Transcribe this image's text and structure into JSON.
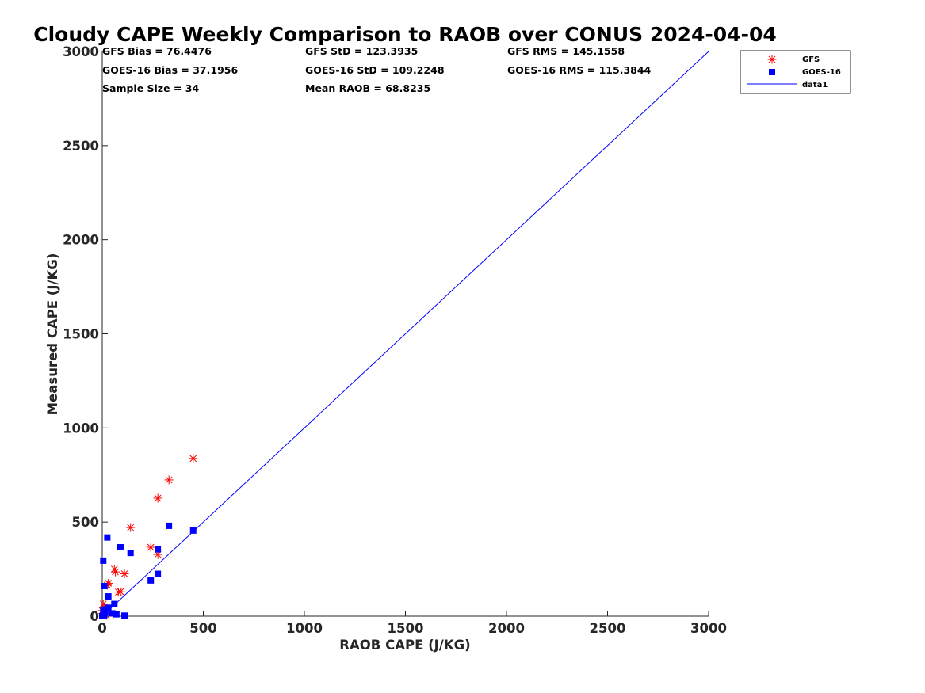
{
  "chart_data": {
    "type": "scatter",
    "title": "Cloudy CAPE Weekly Comparison to RAOB over CONUS 2024-04-04",
    "xlabel": "RAOB CAPE (J/KG)",
    "ylabel": "Measured CAPE (J/KG)",
    "xlim": [
      0,
      3000
    ],
    "ylim": [
      0,
      3000
    ],
    "xticks": [
      "0",
      "500",
      "1000",
      "1500",
      "2000",
      "2500",
      "3000"
    ],
    "yticks": [
      "0",
      "500",
      "1000",
      "1500",
      "2000",
      "2500",
      "3000"
    ],
    "grid": false,
    "legend_position": "top-right",
    "stats": [
      "GFS Bias = 76.4476",
      "GFS StD = 123.3935",
      "GFS RMS = 145.1558",
      "GOES-16 Bias = 37.1956",
      "GOES-16 StD = 109.2248",
      "GOES-16 RMS = 115.3844",
      "Sample Size = 34",
      "Mean RAOB = 68.8235"
    ],
    "series": [
      {
        "name": "GFS",
        "marker": "asterisk",
        "color": "#ff0000",
        "points": [
          [
            450,
            838
          ],
          [
            330,
            724
          ],
          [
            275,
            627
          ],
          [
            140,
            471
          ],
          [
            240,
            366
          ],
          [
            275,
            328
          ],
          [
            60,
            250
          ],
          [
            65,
            235
          ],
          [
            110,
            225
          ],
          [
            30,
            175
          ],
          [
            25,
            165
          ],
          [
            90,
            130
          ],
          [
            80,
            128
          ],
          [
            5,
            65
          ],
          [
            10,
            50
          ],
          [
            0,
            30
          ],
          [
            3,
            15
          ],
          [
            20,
            5
          ]
        ]
      },
      {
        "name": "GOES-16",
        "marker": "square",
        "color": "#0000ff",
        "points": [
          [
            450,
            455
          ],
          [
            330,
            480
          ],
          [
            25,
            418
          ],
          [
            90,
            366
          ],
          [
            275,
            355
          ],
          [
            140,
            336
          ],
          [
            5,
            295
          ],
          [
            275,
            225
          ],
          [
            240,
            190
          ],
          [
            10,
            160
          ],
          [
            30,
            105
          ],
          [
            60,
            65
          ],
          [
            30,
            45
          ],
          [
            5,
            35
          ],
          [
            50,
            15
          ],
          [
            70,
            10
          ],
          [
            110,
            3
          ],
          [
            10,
            5
          ],
          [
            0,
            0
          ],
          [
            15,
            20
          ]
        ]
      },
      {
        "name": "data1",
        "marker": "line",
        "color": "#0000ff",
        "points": [
          [
            0,
            0
          ],
          [
            3000,
            3000
          ]
        ]
      }
    ]
  }
}
